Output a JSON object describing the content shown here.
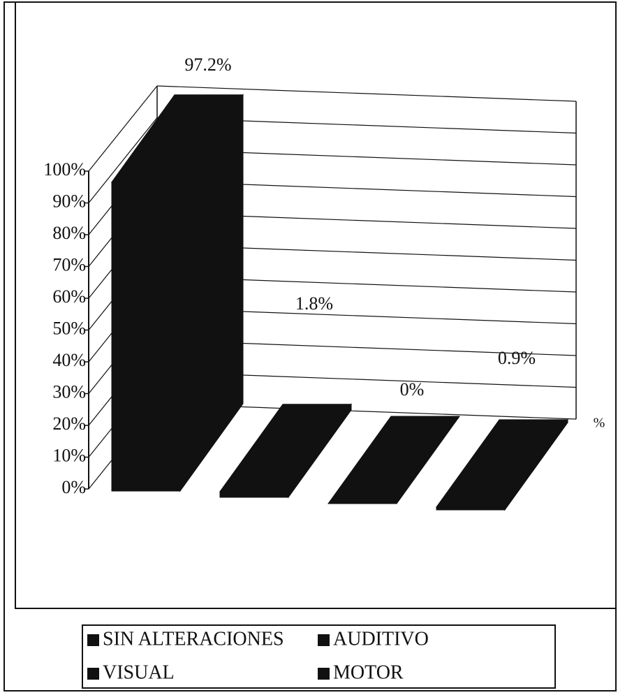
{
  "chart_data": {
    "type": "bar3d",
    "categories": [
      "SIN ALTERACIONES",
      "AUDITIVO",
      "VISUAL",
      "MOTOR"
    ],
    "values": [
      97.2,
      1.8,
      0,
      0.9
    ],
    "value_labels": [
      "97.2%",
      "1.8%",
      "0%",
      "0.9%"
    ],
    "axis_label": "%",
    "color": "#111111",
    "ylim": [
      0,
      100
    ],
    "yticks": [
      {
        "value": 0,
        "label": "0%"
      },
      {
        "value": 10,
        "label": "10%"
      },
      {
        "value": 20,
        "label": "20%"
      },
      {
        "value": 30,
        "label": "30%"
      },
      {
        "value": 40,
        "label": "40%"
      },
      {
        "value": 50,
        "label": "50%"
      },
      {
        "value": 60,
        "label": "60%"
      },
      {
        "value": 70,
        "label": "70%"
      },
      {
        "value": 80,
        "label": "80%"
      },
      {
        "value": 90,
        "label": "90%"
      },
      {
        "value": 100,
        "label": "100%"
      }
    ],
    "grid": true
  }
}
